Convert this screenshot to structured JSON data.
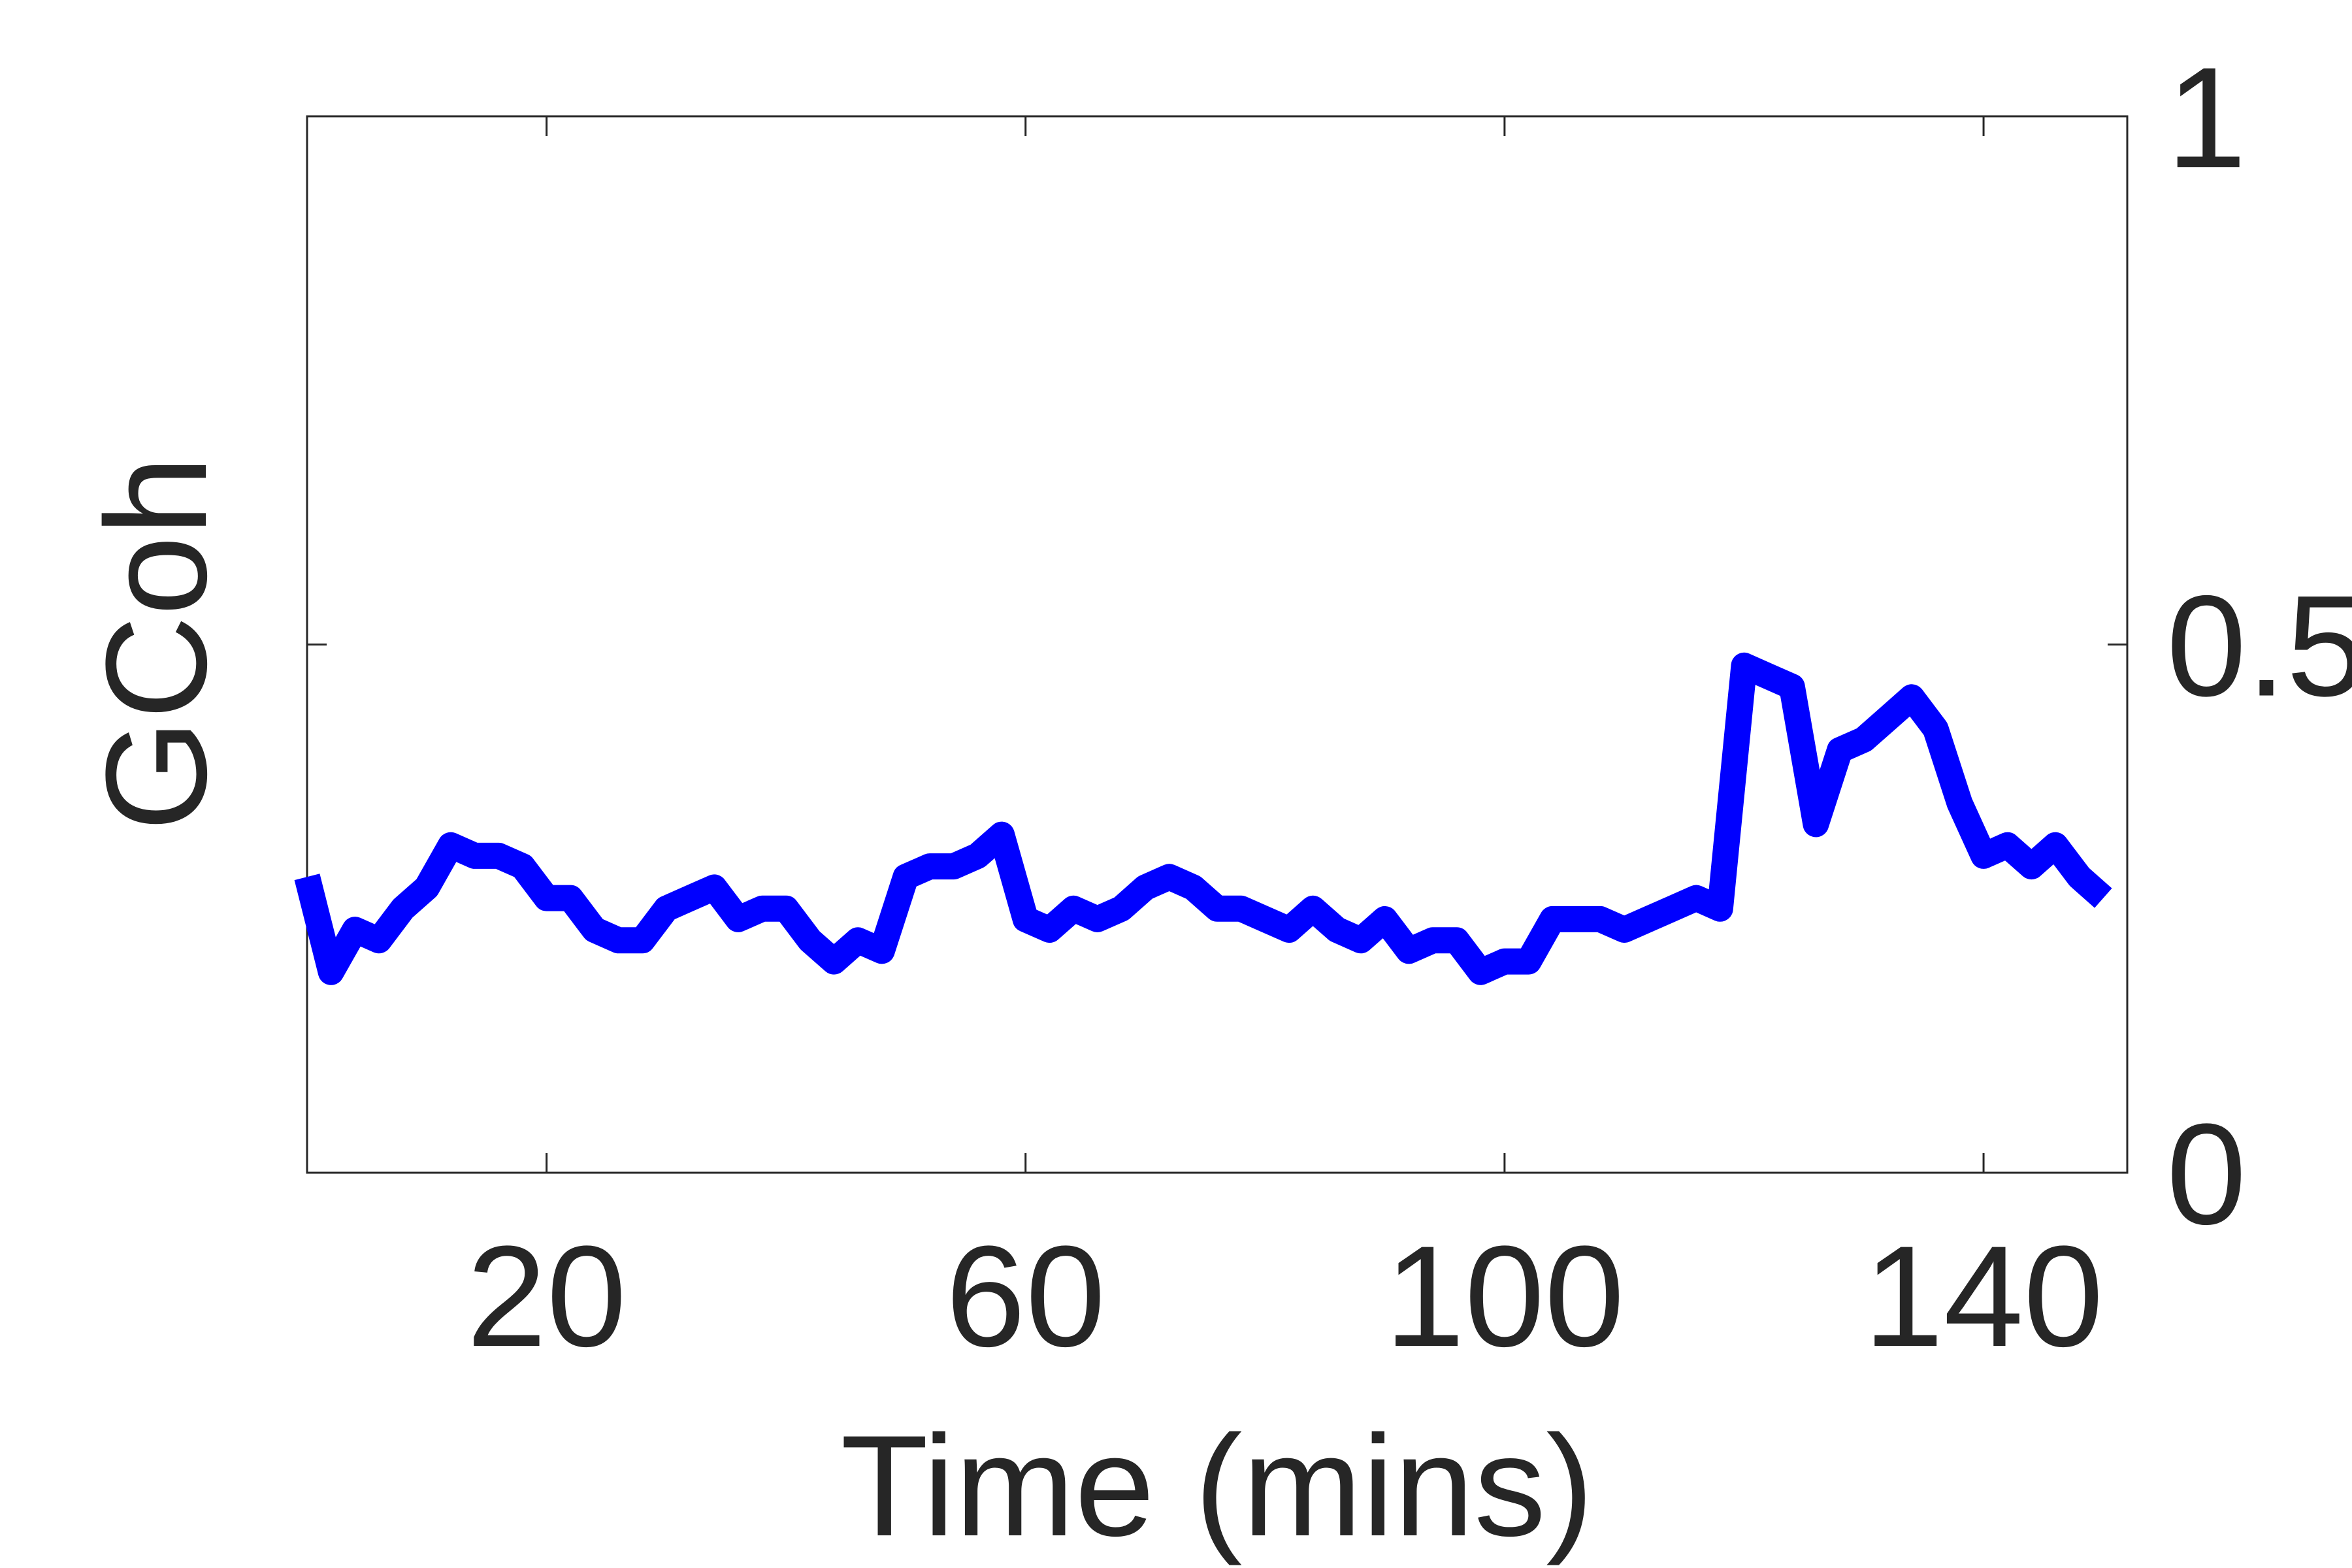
{
  "chart_data": {
    "type": "line",
    "title": "",
    "xlabel": "Time (mins)",
    "ylabel": "GCoh",
    "xlim": [
      0,
      152
    ],
    "ylim": [
      0,
      1
    ],
    "y_axis_side": "right",
    "x_ticks": [
      20,
      60,
      100,
      140
    ],
    "x_tick_labels": [
      "20",
      "60",
      "100",
      "140"
    ],
    "y_ticks": [
      0,
      0.5,
      1
    ],
    "y_tick_labels": [
      "0",
      "0.5",
      "1"
    ],
    "grid": false,
    "legend": false,
    "series": [
      {
        "color": "#0000ff",
        "x": [
          0,
          2,
          4,
          6,
          8,
          10,
          12,
          14,
          16,
          18,
          20,
          22,
          24,
          26,
          28,
          30,
          32,
          34,
          36,
          38,
          40,
          42,
          44,
          46,
          48,
          50,
          52,
          54,
          56,
          58,
          60,
          62,
          64,
          66,
          68,
          70,
          72,
          74,
          76,
          78,
          80,
          82,
          84,
          86,
          88,
          90,
          92,
          94,
          96,
          98,
          100,
          102,
          104,
          106,
          108,
          110,
          112,
          114,
          116,
          118,
          120,
          122,
          124,
          126,
          128,
          130,
          132,
          134,
          136,
          138,
          140,
          142,
          144,
          146,
          148,
          150
        ],
        "y": [
          0.28,
          0.19,
          0.23,
          0.22,
          0.25,
          0.27,
          0.31,
          0.3,
          0.3,
          0.29,
          0.26,
          0.26,
          0.23,
          0.22,
          0.22,
          0.25,
          0.26,
          0.27,
          0.24,
          0.25,
          0.25,
          0.22,
          0.2,
          0.22,
          0.21,
          0.28,
          0.29,
          0.29,
          0.3,
          0.32,
          0.24,
          0.23,
          0.25,
          0.24,
          0.25,
          0.27,
          0.28,
          0.27,
          0.25,
          0.25,
          0.24,
          0.23,
          0.25,
          0.23,
          0.22,
          0.24,
          0.21,
          0.22,
          0.22,
          0.19,
          0.2,
          0.2,
          0.24,
          0.24,
          0.24,
          0.23,
          0.24,
          0.25,
          0.26,
          0.25,
          0.48,
          0.47,
          0.46,
          0.33,
          0.4,
          0.41,
          0.43,
          0.45,
          0.42,
          0.35,
          0.3,
          0.31,
          0.29,
          0.31,
          0.28,
          0.26
        ]
      }
    ]
  }
}
